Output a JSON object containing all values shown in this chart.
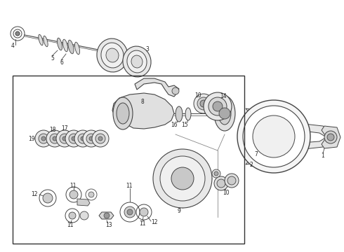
{
  "bg_color": "#ffffff",
  "line_color": "#444444",
  "box_color": "#333333",
  "fig_w": 4.9,
  "fig_h": 3.6,
  "dpi": 100
}
